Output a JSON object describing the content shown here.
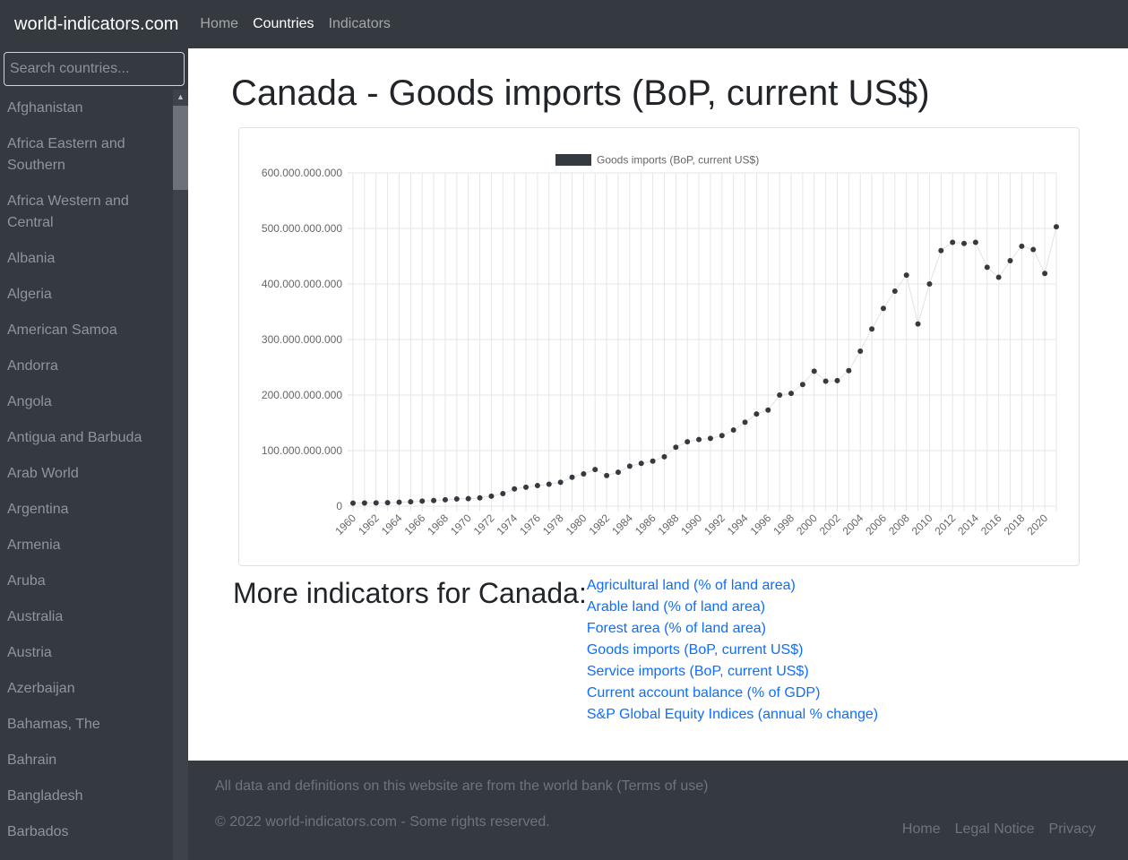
{
  "navbar": {
    "brand": "world-indicators.com",
    "links": [
      {
        "label": "Home",
        "active": false
      },
      {
        "label": "Countries",
        "active": true
      },
      {
        "label": "Indicators",
        "active": false
      }
    ]
  },
  "sidebar": {
    "search_placeholder": "Search countries...",
    "countries": [
      "Afghanistan",
      "Africa Eastern and Southern",
      "Africa Western and Central",
      "Albania",
      "Algeria",
      "American Samoa",
      "Andorra",
      "Angola",
      "Antigua and Barbuda",
      "Arab World",
      "Argentina",
      "Armenia",
      "Aruba",
      "Australia",
      "Austria",
      "Azerbaijan",
      "Bahamas, The",
      "Bahrain",
      "Bangladesh",
      "Barbados"
    ]
  },
  "main": {
    "title": "Canada - Goods imports (BoP, current US$)",
    "more_title": "More indicators for Canada:",
    "more_links": [
      "Agricultural land (% of land area)",
      "Arable land (% of land area)",
      "Forest area (% of land area)",
      "Goods imports (BoP, current US$)",
      "Service imports (BoP, current US$)",
      "Current account balance (% of GDP)",
      "S&P Global Equity Indices (annual % change)"
    ]
  },
  "chart_data": {
    "type": "line",
    "x": [
      1960,
      1961,
      1962,
      1963,
      1964,
      1965,
      1966,
      1967,
      1968,
      1969,
      1970,
      1971,
      1972,
      1973,
      1974,
      1975,
      1976,
      1977,
      1978,
      1979,
      1980,
      1981,
      1982,
      1983,
      1984,
      1985,
      1986,
      1987,
      1988,
      1989,
      1990,
      1991,
      1992,
      1993,
      1994,
      1995,
      1996,
      1997,
      1998,
      1999,
      2000,
      2001,
      2002,
      2003,
      2004,
      2005,
      2006,
      2007,
      2008,
      2009,
      2010,
      2011,
      2012,
      2013,
      2014,
      2015,
      2016,
      2017,
      2018,
      2019,
      2020,
      2021
    ],
    "x_tick_labels": [
      "1960",
      "1962",
      "1964",
      "1966",
      "1968",
      "1970",
      "1972",
      "1974",
      "1976",
      "1978",
      "1980",
      "1982",
      "1984",
      "1986",
      "1988",
      "1990",
      "1992",
      "1994",
      "1996",
      "1998",
      "2000",
      "2002",
      "2004",
      "2006",
      "2008",
      "2010",
      "2012",
      "2014",
      "2016",
      "2018",
      "2020"
    ],
    "series": [
      {
        "name": "Goods imports (BoP, current US$)",
        "color": "#343a40",
        "values": [
          5500000000,
          5700000000,
          5900000000,
          6200000000,
          7000000000,
          7800000000,
          9000000000,
          10000000000,
          11500000000,
          13000000000,
          13500000000,
          15000000000,
          18000000000,
          22500000000,
          31000000000,
          34000000000,
          37000000000,
          39500000000,
          43000000000,
          52000000000,
          58000000000,
          66000000000,
          55000000000,
          61000000000,
          72000000000,
          77000000000,
          81000000000,
          89000000000,
          106000000000,
          116000000000,
          120000000000,
          122000000000,
          127000000000,
          137000000000,
          151000000000,
          166000000000,
          173000000000,
          200000000000,
          203000000000,
          219000000000,
          243000000000,
          225000000000,
          226000000000,
          244000000000,
          279000000000,
          319000000000,
          356000000000,
          387000000000,
          416000000000,
          328000000000,
          400000000000,
          460000000000,
          475000000000,
          473000000000,
          475000000000,
          430000000000,
          412000000000,
          442000000000,
          468000000000,
          462000000000,
          419000000000,
          503000000000
        ]
      }
    ],
    "y_ticks": [
      "0",
      "100.000.000.000",
      "200.000.000.000",
      "300.000.000.000",
      "400.000.000.000",
      "500.000.000.000",
      "600.000.000.000"
    ],
    "ylim": [
      0,
      600000000000
    ],
    "legend_position": "top",
    "grid": true
  },
  "footer": {
    "line1": "All data and definitions on this website are from the world bank (Terms of use)",
    "line2": "© 2022 world-indicators.com - Some rights reserved.",
    "links": [
      "Home",
      "Legal Notice",
      "Privacy"
    ]
  }
}
